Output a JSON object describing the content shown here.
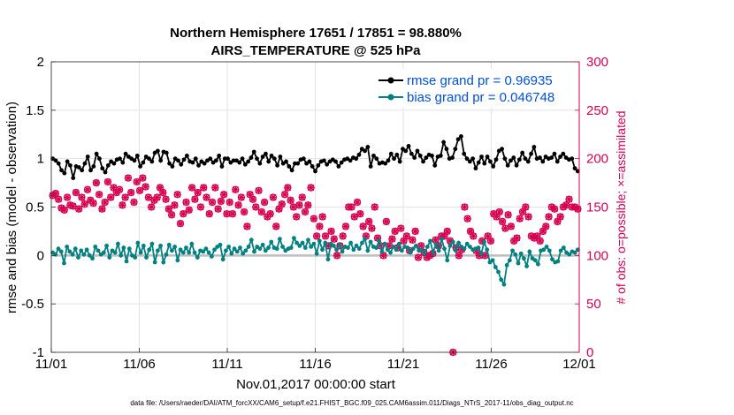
{
  "chart_data": {
    "type": "line",
    "title": [
      "Northern Hemisphere 17651 / 17851 = 98.880%",
      "AIRS_TEMPERATURE @ 525 hPa"
    ],
    "xlabel": "Nov.01,2017 00:00:00 start",
    "ylabel": "rmse and bias (model - observation)",
    "y2label": "# of obs: o=possible; ×=assimilated",
    "xticks": [
      "11/01",
      "11/06",
      "11/11",
      "11/16",
      "11/21",
      "11/26",
      "12/01"
    ],
    "xlim": [
      0,
      30
    ],
    "ylim": [
      -1,
      2
    ],
    "yticks": [
      "-1",
      "-0.5",
      "0",
      "0.5",
      "1",
      "1.5",
      "2"
    ],
    "y2lim": [
      0,
      300
    ],
    "y2ticks": [
      "0",
      "50",
      "100",
      "150",
      "200",
      "250",
      "300"
    ],
    "grid": true,
    "legend": "top-right",
    "series": [
      {
        "name": "rmse grand pr = 0.96935",
        "axis": "left",
        "color": "#000000",
        "values": [
          1.0,
          0.98,
          0.95,
          0.88,
          0.85,
          0.97,
          0.93,
          0.8,
          0.92,
          0.91,
          0.88,
          0.95,
          1.02,
          0.88,
          0.92,
          1.05,
          1.0,
          0.9,
          0.86,
          0.93,
          0.97,
          0.95,
          0.99,
          1.0,
          0.96,
          1.05,
          1.02,
          1.0,
          0.98,
          1.03,
          0.92,
          0.96,
          1.02,
          1.0,
          0.97,
          1.06,
          1.08,
          0.98,
          1.07,
          1.06,
          0.95,
          0.92,
          1.0,
          0.98,
          0.94,
          0.99,
          1.03,
          0.97,
          0.96,
          1.0,
          0.93,
          0.97,
          0.95,
          0.98,
          1.0,
          0.96,
          0.98,
          1.03,
          0.92,
          1.0,
          1.0,
          0.96,
          0.98,
          0.98,
          0.96,
          1.0,
          0.94,
          0.97,
          1.01,
          1.07,
          1.0,
          0.95,
          1.02,
          1.05,
          0.97,
          1.03,
          1.0,
          0.93,
          1.02,
          0.95,
          0.97,
          0.92,
          0.88,
          0.95,
          0.95,
          0.99,
          1.0,
          0.95,
          0.97,
          0.92,
          0.87,
          0.93,
          0.97,
          0.98,
          0.94,
          0.97,
          0.99,
          0.97,
          0.92,
          0.96,
          0.99,
          1.0,
          0.98,
          1.01,
          1.0,
          1.04,
          1.1,
          1.08,
          1.12,
          0.92,
          1.03,
          1.0,
          0.95,
          0.96,
          0.95,
          0.98,
          1.05,
          1.0,
          1.04,
          0.97,
          1.1,
          1.08,
          1.13,
          1.05,
          1.01,
          1.08,
          1.03,
          0.97,
          1.01,
          1.04,
          1.03,
          0.93,
          1.02,
          1.03,
          1.17,
          1.1,
          1.0,
          1.01,
          1.1,
          1.2,
          1.23,
          1.05,
          1.0,
          0.97,
          1.0,
          0.9,
          0.96,
          1.02,
          0.95,
          1.02,
          0.97,
          0.92,
          0.99,
          1.08,
          1.1,
          1.0,
          0.93,
          0.98,
          1.01,
          0.93,
          0.99,
          1.06,
          1.0,
          0.97,
          1.05,
          1.12,
          1.0,
          1.01,
          0.97,
          1.02,
          1.0,
          1.01,
          1.05,
          0.97,
          1.02,
          1.05,
          1.01,
          0.99,
          1.0,
          0.9,
          0.87
        ]
      },
      {
        "name": "bias grand pr = 0.046748",
        "axis": "left",
        "color": "#008080",
        "values": [
          0.03,
          0.01,
          0.07,
          0.04,
          -0.08,
          0.09,
          0.04,
          0.01,
          0.07,
          -0.02,
          0.05,
          0.01,
          0.06,
          0.0,
          -0.03,
          0.09,
          0.05,
          0.01,
          0.03,
          0.1,
          -0.02,
          0.05,
          0.03,
          0.12,
          0.0,
          0.08,
          -0.06,
          0.07,
          0.0,
          -0.02,
          0.13,
          0.03,
          0.1,
          -0.02,
          0.06,
          0.12,
          -0.07,
          0.05,
          0.1,
          -0.07,
          0.01,
          0.11,
          0.05,
          0.09,
          -0.05,
          0.06,
          0.03,
          0.08,
          0.03,
          0.12,
          0.03,
          -0.02,
          0.05,
          0.04,
          0.07,
          0.03,
          -0.01,
          0.06,
          0.09,
          0.11,
          -0.04,
          0.05,
          0.09,
          0.02,
          0.07,
          0.04,
          0.08,
          0.02,
          0.05,
          0.09,
          0.16,
          0.04,
          0.09,
          0.07,
          0.11,
          0.05,
          0.08,
          0.14,
          0.08,
          0.07,
          0.17,
          0.09,
          0.05,
          0.07,
          0.08,
          0.18,
          0.13,
          0.1,
          0.13,
          0.08,
          0.16,
          0.09,
          0.12,
          0.02,
          0.15,
          0.06,
          0.13,
          -0.04,
          0.12,
          0.1,
          0.06,
          0.11,
          0.04,
          0.09,
          0.08,
          0.13,
          0.06,
          0.1,
          0.07,
          0.13,
          0.17,
          0.05,
          0.14,
          0.09,
          0.08,
          0.15,
          0.04,
          0.12,
          0.06,
          0.03,
          0.09,
          0.06,
          0.12,
          0.05,
          0.09,
          0.08,
          0.03,
          0.07,
          0.1,
          0.05,
          0.06,
          0.02,
          0.09,
          0.15,
          0.03,
          0.12,
          0.05,
          0.17,
          0.07,
          -0.05,
          0.1,
          0.14,
          0.05,
          0.13,
          0.09,
          0.07,
          0.12,
          0.09,
          0.06,
          0.07,
          0.08,
          0.02,
          0.14,
          0.06,
          -0.07,
          -0.05,
          -0.12,
          -0.17,
          -0.25,
          -0.3,
          -0.1,
          -0.05,
          0.05,
          0.01,
          -0.08,
          0.02,
          -0.03,
          -0.11,
          0.04,
          -0.03,
          -0.05,
          -0.09,
          0.05,
          0.06,
          0.09,
          0.05,
          -0.04,
          -0.07,
          -0.06,
          0.05,
          0.08,
          0.03,
          0.01,
          0.04,
          0.03,
          0.06
        ]
      },
      {
        "name": "obs possible",
        "axis": "right",
        "color": "#d7004f",
        "marker": "o",
        "values": [
          162,
          164,
          158,
          149,
          147,
          160,
          152,
          151,
          165,
          148,
          160,
          153,
          168,
          157,
          154,
          175,
          163,
          148,
          155,
          176,
          160,
          170,
          165,
          168,
          152,
          160,
          180,
          165,
          155,
          176,
          167,
          180,
          171,
          160,
          150,
          157,
          160,
          170,
          165,
          158,
          148,
          142,
          152,
          163,
          133,
          143,
          155,
          147,
          170,
          158,
          165,
          150,
          170,
          160,
          143,
          155,
          170,
          148,
          156,
          163,
          143,
          155,
          143,
          168,
          152,
          160,
          145,
          130,
          163,
          158,
          150,
          167,
          145,
          155,
          140,
          143,
          160,
          130,
          148,
          153,
          163,
          170,
          157,
          150,
          140,
          152,
          160,
          145,
          152,
          170,
          138,
          120,
          130,
          140,
          120,
          110,
          125,
          117,
          100,
          110,
          120,
          130,
          150,
          150,
          140,
          155,
          143,
          130,
          120,
          135,
          128,
          150,
          118,
          110,
          100,
          135,
          110,
          117,
          125,
          108,
          128,
          115,
          120,
          105,
          116,
          125,
          98,
          110,
          103,
          98,
          100,
          102,
          116,
          110,
          120,
          120,
          125,
          115,
          0,
          108,
          100,
          106,
          150,
          138,
          125,
          120,
          105,
          100,
          115,
          100,
          120,
          115,
          143,
          140,
          145,
          135,
          128,
          142,
          130,
          115,
          118,
          138,
          145,
          150,
          140,
          120,
          118,
          120,
          115,
          125,
          130,
          140,
          150,
          148,
          135,
          140,
          150,
          152,
          158,
          150,
          150,
          148
        ]
      },
      {
        "name": "obs assimilated",
        "axis": "right",
        "color": "#d7004f",
        "marker": "x",
        "values": [
          162,
          164,
          158,
          149,
          147,
          160,
          152,
          151,
          165,
          148,
          160,
          153,
          168,
          157,
          154,
          175,
          163,
          148,
          155,
          176,
          160,
          170,
          165,
          168,
          152,
          160,
          180,
          165,
          155,
          176,
          167,
          180,
          171,
          160,
          150,
          157,
          160,
          170,
          165,
          158,
          148,
          142,
          152,
          163,
          133,
          143,
          155,
          147,
          170,
          158,
          165,
          150,
          170,
          160,
          143,
          155,
          170,
          148,
          156,
          163,
          143,
          155,
          143,
          168,
          152,
          160,
          145,
          130,
          163,
          158,
          150,
          167,
          145,
          155,
          140,
          143,
          160,
          130,
          148,
          153,
          163,
          170,
          157,
          150,
          140,
          152,
          160,
          145,
          152,
          170,
          138,
          120,
          130,
          140,
          120,
          110,
          125,
          117,
          100,
          110,
          120,
          130,
          150,
          150,
          140,
          155,
          143,
          130,
          120,
          135,
          128,
          150,
          118,
          110,
          100,
          135,
          110,
          117,
          125,
          108,
          128,
          115,
          120,
          105,
          116,
          125,
          98,
          110,
          103,
          98,
          100,
          102,
          116,
          110,
          120,
          120,
          125,
          115,
          0,
          108,
          100,
          106,
          150,
          138,
          125,
          120,
          105,
          100,
          115,
          100,
          120,
          115,
          143,
          140,
          145,
          135,
          128,
          142,
          130,
          115,
          118,
          138,
          145,
          150,
          140,
          120,
          118,
          120,
          115,
          125,
          130,
          140,
          150,
          148,
          135,
          140,
          150,
          152,
          158,
          150,
          150,
          148
        ]
      }
    ],
    "zero_line": 0
  },
  "footer": "data file: /Users/raeder/DAI/ATM_forcXX/CAM6_setup/f.e21.FHIST_BGC.f09_025.CAM6assim.011/Diags_NTrS_2017-11/obs_diag_output.nc"
}
